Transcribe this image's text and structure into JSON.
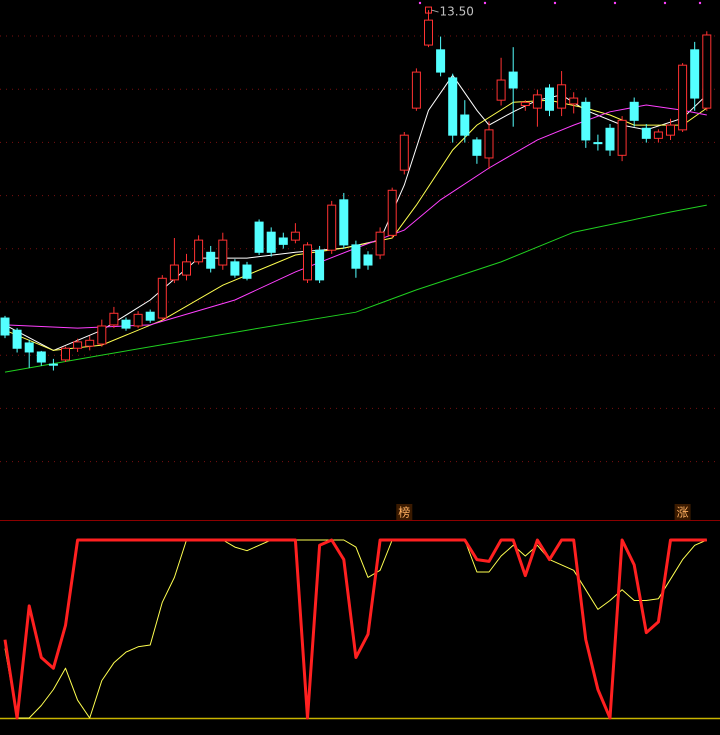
{
  "chart_data": [
    {
      "type": "candlestick",
      "ylim": [
        3.88,
        13.69
      ],
      "up_color": "#ff3232",
      "down_color": "#54ffff",
      "candles": {
        "open": [
          7.69,
          7.46,
          7.22,
          7.05,
          6.82,
          6.9,
          7.12,
          7.16,
          7.2,
          7.56,
          7.65,
          7.54,
          7.8,
          7.69,
          8.41,
          8.5,
          8.75,
          8.93,
          8.69,
          8.75,
          8.69,
          9.5,
          9.31,
          9.2,
          9.16,
          8.41,
          8.97,
          8.97,
          9.92,
          9.07,
          8.88,
          8.88,
          9.25,
          10.48,
          11.65,
          12.84,
          12.75,
          12.22,
          11.52,
          11.05,
          10.71,
          11.8,
          12.33,
          11.7,
          11.65,
          12.03,
          11.65,
          11.73,
          11.76,
          11.0,
          11.27,
          10.76,
          11.76,
          11.27,
          11.08,
          11.14,
          11.24,
          12.75,
          11.65
        ],
        "high": [
          7.73,
          7.5,
          7.28,
          7.07,
          6.92,
          7.15,
          7.3,
          7.35,
          7.66,
          7.9,
          7.7,
          7.82,
          7.85,
          8.5,
          9.2,
          8.9,
          9.25,
          9.05,
          9.3,
          8.8,
          8.75,
          9.55,
          9.4,
          9.3,
          9.48,
          9.12,
          9.05,
          9.9,
          10.05,
          9.15,
          8.95,
          9.4,
          10.15,
          11.2,
          12.4,
          13.5,
          13.0,
          12.3,
          11.8,
          11.1,
          11.4,
          12.6,
          12.8,
          11.8,
          12.0,
          12.1,
          12.35,
          11.95,
          11.85,
          11.15,
          11.35,
          11.5,
          11.85,
          11.35,
          11.25,
          11.45,
          12.5,
          12.9,
          13.1
        ],
        "low": [
          7.31,
          7.04,
          6.75,
          6.79,
          6.7,
          6.86,
          7.05,
          7.08,
          7.15,
          7.5,
          7.45,
          7.5,
          7.6,
          7.65,
          8.35,
          8.4,
          8.7,
          8.55,
          8.6,
          8.45,
          8.4,
          8.88,
          8.85,
          9.0,
          9.1,
          8.35,
          8.35,
          8.9,
          9.0,
          8.45,
          8.6,
          8.8,
          9.2,
          10.4,
          11.6,
          12.8,
          12.25,
          11.0,
          11.0,
          10.6,
          10.5,
          11.7,
          11.3,
          11.6,
          11.3,
          11.5,
          11.5,
          11.55,
          10.9,
          10.85,
          10.75,
          10.65,
          11.3,
          11.0,
          11.0,
          11.05,
          11.2,
          11.6,
          11.6
        ],
        "close": [
          7.37,
          7.12,
          7.05,
          6.86,
          6.8,
          7.12,
          7.24,
          7.27,
          7.54,
          7.78,
          7.5,
          7.76,
          7.65,
          8.44,
          8.69,
          8.75,
          9.16,
          8.63,
          9.16,
          8.5,
          8.44,
          8.93,
          8.93,
          9.08,
          9.31,
          9.07,
          8.41,
          9.82,
          9.07,
          8.63,
          8.69,
          9.31,
          10.1,
          11.14,
          12.33,
          13.31,
          12.33,
          11.14,
          11.14,
          10.76,
          11.24,
          12.18,
          12.03,
          11.76,
          11.9,
          11.61,
          12.09,
          11.84,
          11.05,
          10.98,
          10.86,
          11.42,
          11.42,
          11.08,
          11.2,
          11.33,
          12.46,
          11.84,
          13.03
        ]
      },
      "series": [
        {
          "color": "#ffffff",
          "x": [
            0,
            4,
            8,
            12,
            16,
            20,
            24,
            28,
            31,
            33,
            35,
            37,
            39,
            40,
            42,
            44,
            46,
            48,
            51,
            53,
            56,
            58
          ],
          "values": [
            7.56,
            7.08,
            7.46,
            8.03,
            8.82,
            8.82,
            8.93,
            9.01,
            9.16,
            10.2,
            11.61,
            12.27,
            11.61,
            11.33,
            11.58,
            11.8,
            11.9,
            11.61,
            11.33,
            11.24,
            11.46,
            11.9
          ]
        },
        {
          "color": "#ffff50",
          "x": [
            0,
            4,
            8,
            13,
            18,
            24,
            28,
            32,
            34,
            37,
            39,
            42,
            45,
            48,
            50,
            52,
            56,
            58
          ],
          "values": [
            7.46,
            7.08,
            7.18,
            7.65,
            8.31,
            8.88,
            9.01,
            9.2,
            9.82,
            10.86,
            11.33,
            11.76,
            11.8,
            11.65,
            11.52,
            11.33,
            11.33,
            11.65
          ]
        },
        {
          "color": "#ff40ff",
          "x": [
            0,
            6,
            12,
            19,
            24,
            29,
            33,
            36,
            40,
            44,
            47,
            50,
            53,
            56,
            58
          ],
          "values": [
            7.56,
            7.5,
            7.56,
            8.03,
            8.56,
            9.01,
            9.35,
            9.92,
            10.52,
            11.05,
            11.33,
            11.58,
            11.71,
            11.61,
            11.52
          ]
        },
        {
          "color": "#20d020",
          "x": [
            0,
            8,
            20,
            29,
            34,
            41,
            47,
            55,
            58
          ],
          "values": [
            6.67,
            6.99,
            7.46,
            7.8,
            8.22,
            8.75,
            9.31,
            9.69,
            9.82
          ]
        }
      ],
      "max_label": {
        "value": 13.5,
        "label": "13.50",
        "x": 35
      }
    },
    {
      "type": "line",
      "ylim": [
        0,
        100
      ],
      "series": [
        {
          "color": "#ffff50",
          "width": 1,
          "values": [
            39,
            0,
            0,
            7,
            16,
            28,
            10,
            0,
            21,
            31,
            37,
            40,
            41,
            65,
            79,
            100,
            100,
            100,
            100,
            96,
            94,
            97,
            100,
            100,
            100,
            100,
            100,
            100,
            100,
            96,
            79,
            83,
            100,
            100,
            100,
            100,
            100,
            100,
            100,
            82,
            82,
            91,
            97,
            91,
            97,
            89,
            86,
            83,
            72,
            61,
            66,
            72,
            66,
            66,
            67,
            78,
            89,
            97,
            100
          ]
        },
        {
          "color": "#ff2020",
          "width": 3,
          "values": [
            44,
            0,
            63,
            34,
            28,
            52,
            100,
            100,
            100,
            100,
            100,
            100,
            100,
            100,
            100,
            100,
            100,
            100,
            100,
            100,
            100,
            100,
            100,
            100,
            100,
            0,
            97,
            100,
            89,
            34,
            47,
            100,
            100,
            100,
            100,
            100,
            100,
            100,
            100,
            89,
            88,
            100,
            100,
            80,
            100,
            89,
            100,
            100,
            44,
            16,
            0,
            100,
            86,
            48,
            54,
            100,
            100,
            100,
            100
          ]
        }
      ],
      "annotations": [
        {
          "text": "榜",
          "x": 33
        },
        {
          "text": "涨",
          "x": 56
        }
      ]
    }
  ]
}
